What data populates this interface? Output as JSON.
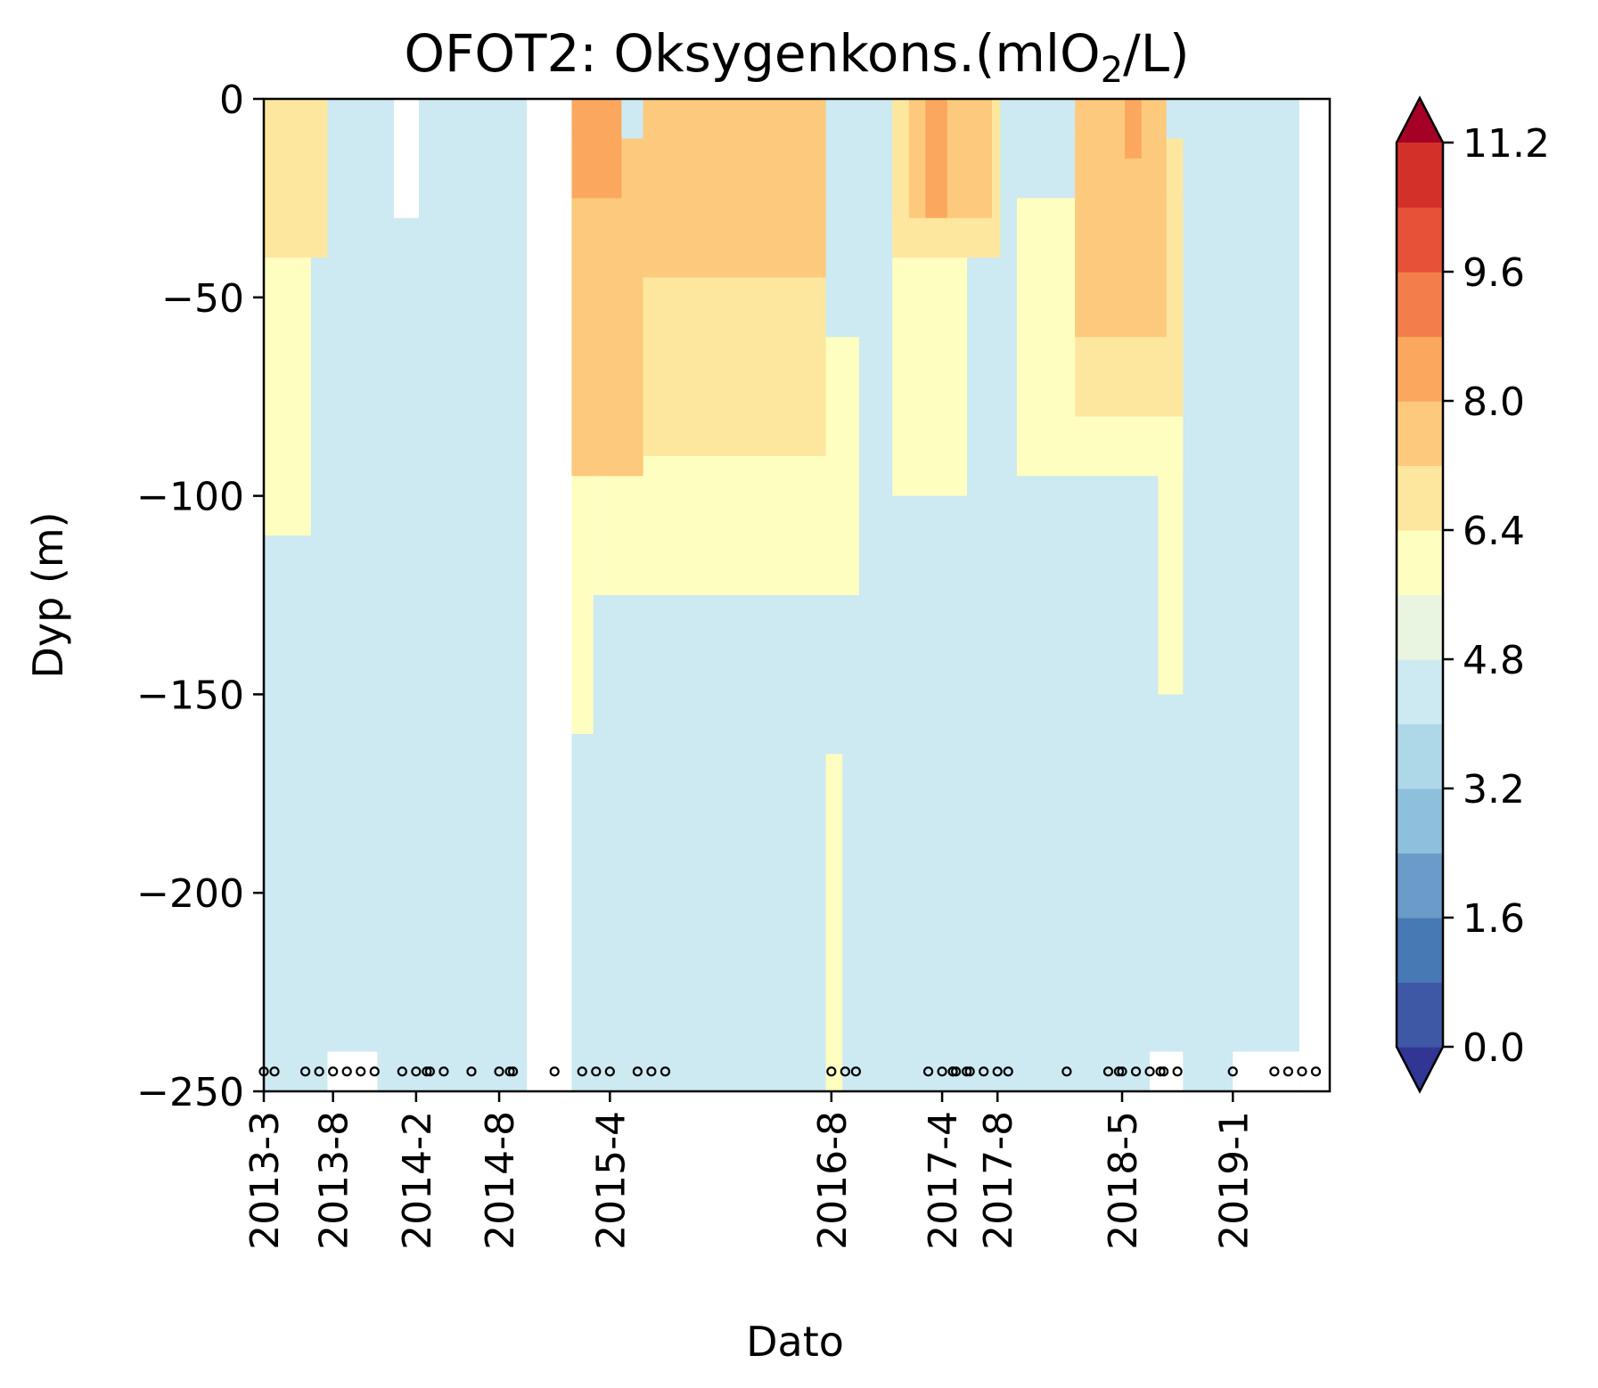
{
  "chart_data": {
    "type": "heatmap",
    "subtype": "filled-contour depth-time section",
    "title": {
      "prefix": "OFOT2: Oksygenkons.(mlO",
      "subscript": "2",
      "suffix": "/L)"
    },
    "xlabel": "Dato",
    "ylabel": "Dyp (m)",
    "ylim": [
      -250,
      0
    ],
    "yticks": [
      {
        "value": 0,
        "label": "0"
      },
      {
        "value": -50,
        "label": "−50"
      },
      {
        "value": -100,
        "label": "−100"
      },
      {
        "value": -150,
        "label": "−150"
      },
      {
        "value": -200,
        "label": "−200"
      },
      {
        "value": -250,
        "label": "−250"
      }
    ],
    "xlim": [
      "2013-03",
      "2019-08"
    ],
    "xticks": [
      {
        "date": "2013-03",
        "label": "2013-3"
      },
      {
        "date": "2013-08",
        "label": "2013-8"
      },
      {
        "date": "2014-02",
        "label": "2014-2"
      },
      {
        "date": "2014-08",
        "label": "2014-8"
      },
      {
        "date": "2015-04",
        "label": "2015-4"
      },
      {
        "date": "2016-08",
        "label": "2016-8"
      },
      {
        "date": "2017-04",
        "label": "2017-4"
      },
      {
        "date": "2017-08",
        "label": "2017-8"
      },
      {
        "date": "2018-05",
        "label": "2018-5"
      },
      {
        "date": "2019-01",
        "label": "2019-1"
      }
    ],
    "sample_dates": [
      "2013-03",
      "2013-03",
      "2013-06",
      "2013-07",
      "2013-08",
      "2013-09",
      "2013-10",
      "2013-11",
      "2014-01",
      "2014-02",
      "2014-02",
      "2014-03",
      "2014-04",
      "2014-06",
      "2014-08",
      "2014-08",
      "2014-09",
      "2014-12",
      "2015-02",
      "2015-03",
      "2015-04",
      "2015-06",
      "2015-07",
      "2015-08",
      "2016-08",
      "2016-09",
      "2016-09",
      "2017-03",
      "2017-04",
      "2017-04",
      "2017-04",
      "2017-05",
      "2017-05",
      "2017-06",
      "2017-07",
      "2017-08",
      "2017-08",
      "2018-01",
      "2018-04",
      "2018-04",
      "2018-05",
      "2018-06",
      "2018-07",
      "2018-07",
      "2018-08",
      "2018-09",
      "2019-01",
      "2019-04",
      "2019-05",
      "2019-06",
      "2019-07"
    ],
    "sample_depth": -245,
    "colorbar": {
      "levels": [
        0.0,
        0.8,
        1.6,
        2.4,
        3.2,
        4.0,
        4.8,
        5.6,
        6.4,
        7.2,
        8.0,
        8.8,
        9.6,
        10.4,
        11.2
      ],
      "tick_values": [
        0.0,
        1.6,
        3.2,
        4.8,
        6.4,
        8.0,
        9.6,
        11.2
      ],
      "tick_labels": [
        "0.0",
        "1.6",
        "3.2",
        "4.8",
        "6.4",
        "8.0",
        "9.6",
        "11.2"
      ],
      "colors": [
        "#3e58a6",
        "#4779b5",
        "#6a9bc9",
        "#8ebfdb",
        "#aed7e8",
        "#cde9f1",
        "#eaf5e1",
        "#fefec0",
        "#fde79f",
        "#fdc97c",
        "#fba75e",
        "#f47e4b",
        "#e65138",
        "#d4302a"
      ],
      "under_color": "#313695",
      "over_color": "#a50026",
      "extend": "both"
    },
    "regions": [
      {
        "level": 4.0,
        "time": [
          2013.17,
          2014.66
        ],
        "depth": [
          -250,
          -95
        ]
      },
      {
        "level": 4.0,
        "time": [
          2016.85,
          2017.12
        ],
        "depth": [
          -235,
          -160
        ]
      },
      {
        "level": 4.0,
        "time": [
          2017.65,
          2017.88
        ],
        "depth": [
          -240,
          -105
        ]
      },
      {
        "level": 4.0,
        "time": [
          2018.4,
          2018.75
        ],
        "depth": [
          -235,
          -170
        ]
      },
      {
        "level": 4.0,
        "time": [
          2018.85,
          2019.08
        ],
        "depth": [
          -215,
          -160
        ]
      },
      {
        "level": 5.6,
        "time": [
          2013.17,
          2013.45
        ],
        "depth": [
          -110,
          -35
        ]
      },
      {
        "level": 5.6,
        "time": [
          2014.95,
          2015.15
        ],
        "depth": [
          -160,
          -90
        ]
      },
      {
        "level": 5.6,
        "time": [
          2015.15,
          2016.75
        ],
        "depth": [
          -125,
          -60
        ]
      },
      {
        "level": 5.6,
        "time": [
          2016.55,
          2016.65
        ],
        "depth": [
          -250,
          -165
        ]
      },
      {
        "level": 5.6,
        "time": [
          2016.95,
          2017.4
        ],
        "depth": [
          -100,
          -30
        ]
      },
      {
        "level": 5.6,
        "time": [
          2017.7,
          2018.7
        ],
        "depth": [
          -95,
          -25
        ]
      },
      {
        "level": 5.6,
        "time": [
          2018.55,
          2018.7
        ],
        "depth": [
          -150,
          -80
        ]
      },
      {
        "level": 6.4,
        "time": [
          2013.17,
          2013.55
        ],
        "depth": [
          -40,
          0
        ]
      },
      {
        "level": 6.4,
        "time": [
          2015.0,
          2016.55
        ],
        "depth": [
          -90,
          -25
        ]
      },
      {
        "level": 6.4,
        "time": [
          2016.95,
          2017.6
        ],
        "depth": [
          -40,
          0
        ]
      },
      {
        "level": 6.4,
        "time": [
          2018.05,
          2018.7
        ],
        "depth": [
          -80,
          -10
        ]
      },
      {
        "level": 7.2,
        "time": [
          2015.0,
          2015.45
        ],
        "depth": [
          -95,
          -10
        ]
      },
      {
        "level": 7.2,
        "time": [
          2015.45,
          2016.55
        ],
        "depth": [
          -45,
          0
        ]
      },
      {
        "level": 7.2,
        "time": [
          2018.05,
          2018.6
        ],
        "depth": [
          -60,
          0
        ]
      },
      {
        "level": 7.2,
        "time": [
          2017.05,
          2017.55
        ],
        "depth": [
          -30,
          0
        ]
      },
      {
        "level": 8.0,
        "time": [
          2015.02,
          2015.32
        ],
        "depth": [
          -25,
          0
        ]
      },
      {
        "level": 8.0,
        "time": [
          2017.15,
          2017.28
        ],
        "depth": [
          -30,
          0
        ]
      },
      {
        "level": 8.0,
        "time": [
          2018.35,
          2018.45
        ],
        "depth": [
          -15,
          0
        ]
      }
    ],
    "gaps": [
      {
        "time": [
          2014.75,
          2015.02
        ],
        "depth": [
          -250,
          0
        ]
      },
      {
        "time": [
          2013.95,
          2014.1
        ],
        "depth": [
          -30,
          0
        ]
      },
      {
        "time": [
          2013.55,
          2013.85
        ],
        "depth": [
          -250,
          -240
        ]
      },
      {
        "time": [
          2018.5,
          2018.7
        ],
        "depth": [
          -250,
          -240
        ]
      },
      {
        "time": [
          2019.0,
          2019.4
        ],
        "depth": [
          -250,
          -240
        ]
      },
      {
        "time": [
          2019.4,
          2019.58
        ],
        "depth": [
          -250,
          0
        ]
      }
    ]
  }
}
